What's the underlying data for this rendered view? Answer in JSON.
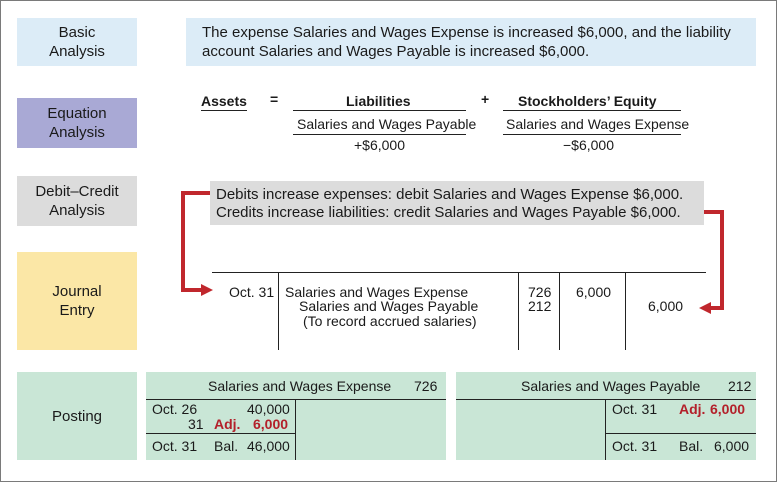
{
  "labels": {
    "basic": [
      "Basic",
      "Analysis"
    ],
    "equation": [
      "Equation",
      "Analysis"
    ],
    "debit_credit": [
      "Debit–Credit",
      "Analysis"
    ],
    "journal": [
      "Journal",
      "Entry"
    ],
    "posting": "Posting"
  },
  "basic_analysis": [
    "The expense Salaries and Wages Expense is increased $6,000, and the liability",
    "account Salaries and Wages Payable is increased $6,000."
  ],
  "equation": {
    "assets": "Assets",
    "equals": "=",
    "liabilities": "Liabilities",
    "plus": "+",
    "equity": "Stockholders’ Equity",
    "liab_account": "Salaries and Wages Payable",
    "liab_amount": "+$6,000",
    "equity_account": "Salaries and Wages Expense",
    "equity_amount": "−$6,000"
  },
  "debit_credit": [
    "Debits increase expenses: debit Salaries and Wages Expense $6,000.",
    "Credits increase liabilities: credit Salaries and Wages Payable $6,000."
  ],
  "journal": {
    "date": "Oct. 31",
    "debit_account": "Salaries and Wages Expense",
    "credit_account": "Salaries and Wages Payable",
    "explanation": "(To record accrued salaries)",
    "ref_debit": "726",
    "ref_credit": "212",
    "debit_amount": "6,000",
    "credit_amount": "6,000"
  },
  "posting": {
    "expense": {
      "title": "Salaries and Wages Expense",
      "number": "726",
      "row1_date": "Oct. 26",
      "row1_amount": "40,000",
      "row2_date": "31",
      "row2_adj": "Adj.",
      "row2_amount": "6,000",
      "bal_date": "Oct. 31",
      "bal_label": "Bal.",
      "bal_amount": "46,000"
    },
    "payable": {
      "title": "Salaries and Wages Payable",
      "number": "212",
      "row1_date": "Oct. 31",
      "row1_adj": "Adj.",
      "row1_amount": "6,000",
      "bal_date": "Oct. 31",
      "bal_label": "Bal.",
      "bal_amount": "6,000"
    }
  },
  "colors": {
    "basic": "#dcecf7",
    "equation": "#a9a9d5",
    "debit_credit": "#dcdcdc",
    "journal": "#fbe7a6",
    "posting": "#c9e6d6",
    "arrow": "#c0272d",
    "adjustment": "#b3202a"
  }
}
